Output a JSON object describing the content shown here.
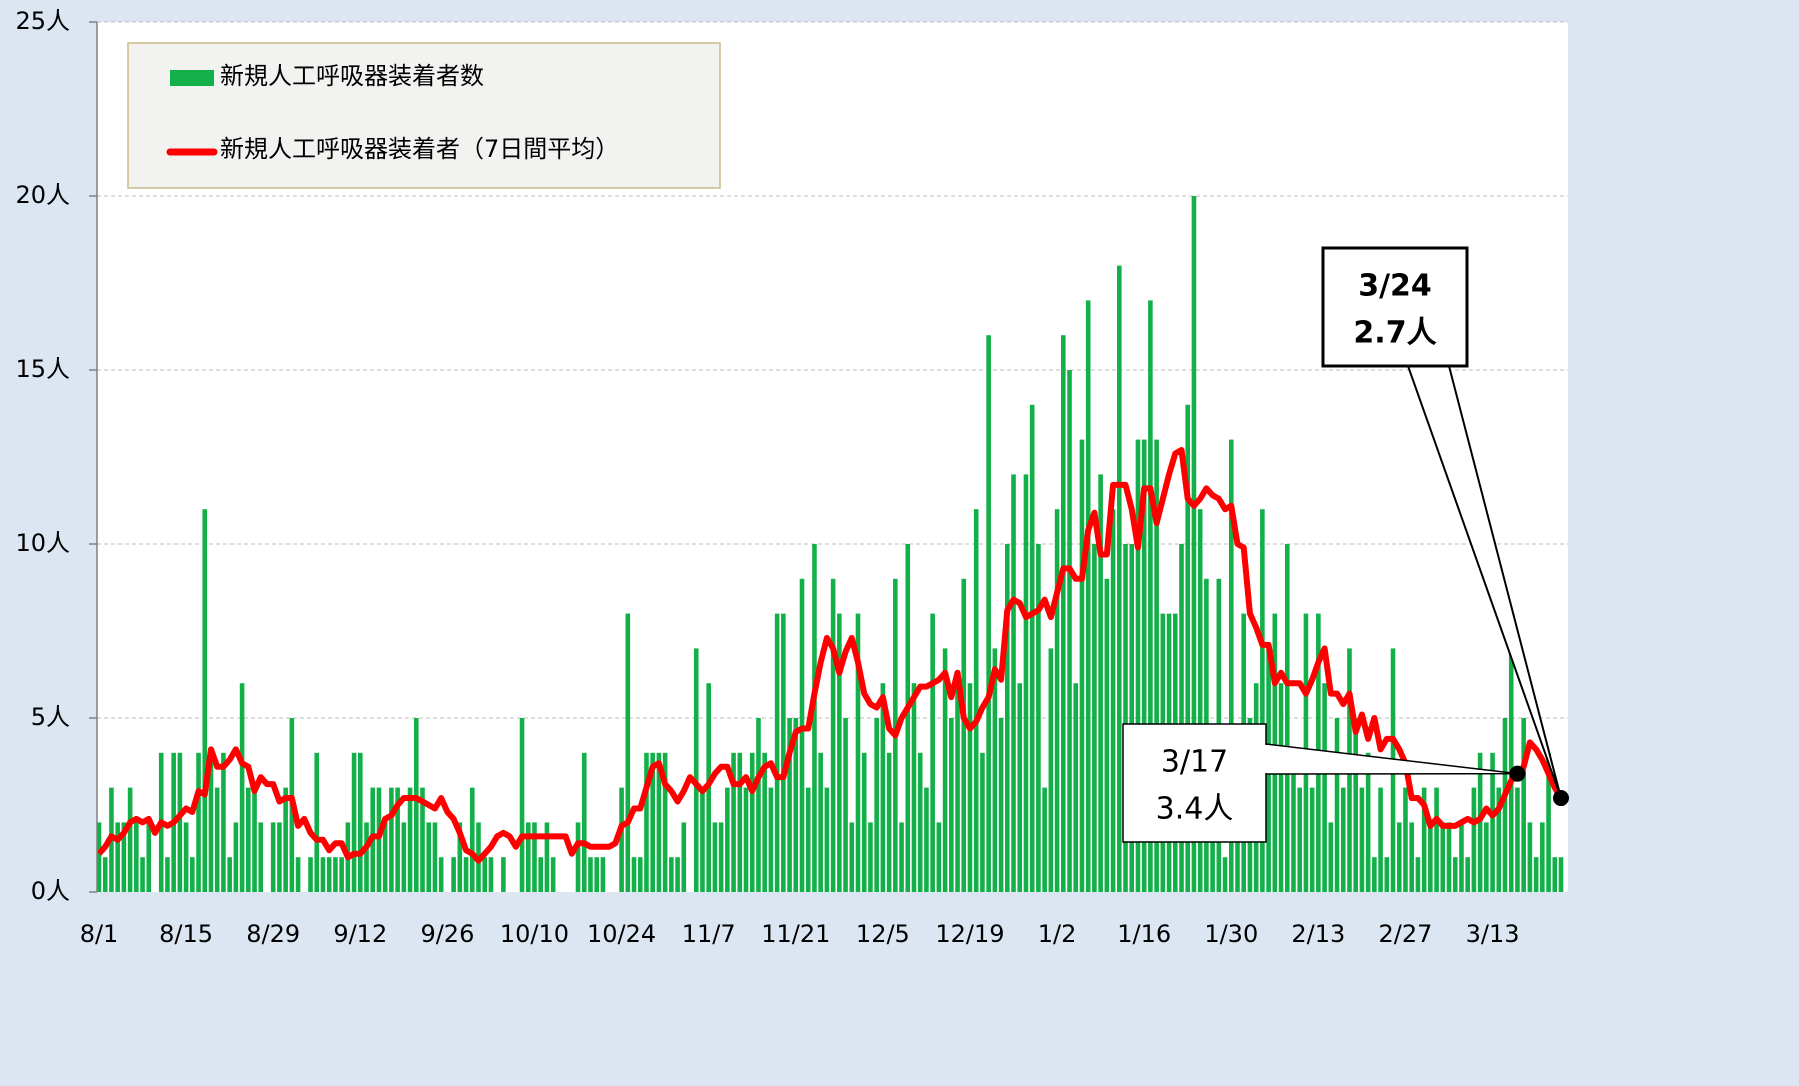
{
  "chart_data": {
    "type": "bar_line",
    "categories": [
      "8/1",
      null,
      null,
      null,
      null,
      null,
      null,
      null,
      null,
      null,
      null,
      null,
      null,
      null,
      "8/15",
      null,
      null,
      null,
      null,
      null,
      null,
      null,
      null,
      null,
      null,
      null,
      null,
      null,
      "8/29",
      null,
      null,
      null,
      null,
      null,
      null,
      null,
      null,
      null,
      null,
      null,
      null,
      null,
      "9/12",
      null,
      null,
      null,
      null,
      null,
      null,
      null,
      null,
      null,
      null,
      null,
      null,
      null,
      "9/26",
      null,
      null,
      null,
      null,
      null,
      null,
      null,
      null,
      null,
      null,
      null,
      null,
      null,
      "10/10",
      null,
      null,
      null,
      null,
      null,
      null,
      null,
      null,
      null,
      null,
      null,
      null,
      null,
      "10/24",
      null,
      null,
      null,
      null,
      null,
      null,
      null,
      null,
      null,
      null,
      null,
      null,
      null,
      "11/7",
      null,
      null,
      null,
      null,
      null,
      null,
      null,
      null,
      null,
      null,
      null,
      null,
      null,
      "11/21",
      null,
      null,
      null,
      null,
      null,
      null,
      null,
      null,
      null,
      null,
      null,
      null,
      null,
      "12/5",
      null,
      null,
      null,
      null,
      null,
      null,
      null,
      null,
      null,
      null,
      null,
      null,
      null,
      "12/19",
      null,
      null,
      null,
      null,
      null,
      null,
      null,
      null,
      null,
      null,
      null,
      null,
      null,
      "1/2",
      null,
      null,
      null,
      null,
      null,
      null,
      null,
      null,
      null,
      null,
      null,
      null,
      null,
      "1/16",
      null,
      null,
      null,
      null,
      null,
      null,
      null,
      null,
      null,
      null,
      null,
      null,
      null,
      "1/30",
      null,
      null,
      null,
      null,
      null,
      null,
      null,
      null,
      null,
      null,
      null,
      null,
      null,
      "2/13",
      null,
      null,
      null,
      null,
      null,
      null,
      null,
      null,
      null,
      null,
      null,
      null,
      null,
      "2/27",
      null,
      null,
      null,
      null,
      null,
      null,
      null,
      null,
      null,
      null,
      null,
      null,
      null,
      "3/13",
      null,
      null,
      null,
      null,
      null,
      null,
      null,
      null,
      null,
      null,
      null
    ],
    "series": [
      {
        "name": "新規人工呼吸器装着者数",
        "kind": "bar",
        "color": "#13b04a",
        "values": [
          2,
          1,
          3,
          2,
          2,
          3,
          2,
          1,
          2,
          0,
          4,
          1,
          4,
          4,
          2,
          1,
          4,
          11,
          4,
          3,
          4,
          1,
          2,
          6,
          3,
          3,
          2,
          0,
          2,
          2,
          3,
          5,
          1,
          0,
          1,
          4,
          1,
          1,
          1,
          1,
          2,
          4,
          4,
          2,
          3,
          3,
          2,
          3,
          3,
          2,
          3,
          5,
          3,
          2,
          2,
          1,
          0,
          1,
          2,
          1,
          3,
          2,
          1,
          1,
          0,
          1,
          0,
          0,
          5,
          2,
          2,
          1,
          2,
          1,
          0,
          0,
          0,
          2,
          4,
          1,
          1,
          1,
          0,
          0,
          3,
          8,
          1,
          1,
          4,
          4,
          4,
          4,
          1,
          1,
          2,
          0,
          7,
          3,
          6,
          2,
          2,
          3,
          4,
          4,
          3,
          4,
          5,
          4,
          3,
          8,
          8,
          5,
          5,
          9,
          3,
          10,
          4,
          3,
          9,
          8,
          5,
          2,
          8,
          4,
          2,
          5,
          6,
          4,
          9,
          2,
          10,
          6,
          4,
          3,
          8,
          2,
          7,
          5,
          6,
          9,
          6,
          11,
          4,
          16,
          7,
          5,
          10,
          12,
          6,
          12,
          14,
          10,
          3,
          7,
          11,
          16,
          15,
          6,
          13,
          17,
          10,
          12,
          9,
          11,
          18,
          10,
          10,
          13,
          13,
          17,
          13,
          8,
          8,
          8,
          10,
          14,
          20,
          11,
          9,
          3,
          9,
          1,
          13,
          2,
          8,
          5,
          6,
          11,
          7,
          8,
          6,
          10,
          4,
          3,
          8,
          3,
          8,
          6,
          2,
          5,
          3,
          7,
          5,
          3,
          4,
          1,
          3,
          1,
          7,
          2,
          3,
          2,
          1,
          3,
          2,
          3,
          2,
          2,
          1,
          2,
          1,
          3,
          4,
          2,
          4,
          3,
          5,
          7,
          3,
          5,
          2,
          1,
          2,
          4,
          1,
          1
        ]
      },
      {
        "name": "新規人工呼吸器装着者（7日間平均）",
        "kind": "line",
        "color": "#ff0000",
        "values": [
          1.1,
          1.3,
          1.6,
          1.5,
          1.7,
          2.0,
          2.1,
          2.0,
          2.1,
          1.7,
          2.0,
          1.9,
          2.0,
          2.2,
          2.4,
          2.3,
          2.9,
          2.8,
          4.1,
          3.6,
          3.6,
          3.8,
          4.1,
          3.7,
          3.6,
          2.9,
          3.3,
          3.1,
          3.1,
          2.6,
          2.7,
          2.7,
          1.9,
          2.1,
          1.7,
          1.5,
          1.5,
          1.2,
          1.4,
          1.4,
          1.0,
          1.1,
          1.1,
          1.3,
          1.6,
          1.6,
          2.1,
          2.2,
          2.5,
          2.7,
          2.7,
          2.7,
          2.6,
          2.5,
          2.4,
          2.7,
          2.3,
          2.1,
          1.7,
          1.2,
          1.1,
          0.9,
          1.1,
          1.3,
          1.6,
          1.7,
          1.6,
          1.3,
          1.6,
          1.6,
          1.6,
          1.6,
          1.6,
          1.6,
          1.6,
          1.6,
          1.1,
          1.4,
          1.4,
          1.3,
          1.3,
          1.3,
          1.3,
          1.4,
          1.9,
          2.0,
          2.4,
          2.4,
          3.0,
          3.6,
          3.7,
          3.1,
          2.9,
          2.6,
          2.9,
          3.3,
          3.1,
          2.9,
          3.1,
          3.4,
          3.6,
          3.6,
          3.1,
          3.1,
          3.3,
          2.9,
          3.3,
          3.6,
          3.7,
          3.3,
          3.3,
          4.0,
          4.6,
          4.7,
          4.7,
          5.7,
          6.6,
          7.3,
          7.0,
          6.3,
          6.9,
          7.3,
          6.6,
          5.7,
          5.4,
          5.3,
          5.6,
          4.7,
          4.5,
          5.0,
          5.3,
          5.6,
          5.9,
          5.9,
          6.0,
          6.1,
          6.3,
          5.6,
          6.3,
          5.0,
          4.7,
          4.9,
          5.3,
          5.6,
          6.4,
          6.1,
          8.1,
          8.4,
          8.3,
          7.9,
          8.0,
          8.1,
          8.4,
          7.9,
          8.6,
          9.3,
          9.3,
          9.0,
          9.0,
          10.4,
          10.9,
          9.7,
          9.7,
          11.7,
          11.7,
          11.7,
          11.0,
          9.9,
          11.6,
          11.6,
          10.6,
          11.3,
          12.0,
          12.6,
          12.7,
          11.3,
          11.1,
          11.3,
          11.6,
          11.4,
          11.3,
          11.0,
          11.1,
          10.0,
          9.9,
          8.0,
          7.6,
          7.1,
          7.1,
          6.0,
          6.3,
          6.0,
          6.0,
          6.0,
          5.7,
          6.1,
          6.6,
          7.0,
          5.7,
          5.7,
          5.4,
          5.7,
          4.6,
          5.1,
          4.4,
          5.0,
          4.1,
          4.4,
          4.4,
          4.1,
          3.7,
          2.7,
          2.7,
          2.5,
          1.9,
          2.1,
          1.9,
          1.9,
          1.9,
          2.0,
          2.1,
          2.0,
          2.1,
          2.4,
          2.2,
          2.4,
          2.8,
          3.2,
          3.4,
          3.6,
          4.3,
          4.1,
          3.8,
          3.4,
          3.0,
          2.7
        ]
      }
    ],
    "ylim": [
      0,
      25
    ],
    "yticks": [
      {
        "value": 0,
        "label": "0人"
      },
      {
        "value": 5,
        "label": "5人"
      },
      {
        "value": 10,
        "label": "10人"
      },
      {
        "value": 15,
        "label": "15人"
      },
      {
        "value": 20,
        "label": "20人"
      },
      {
        "value": 25,
        "label": "25人"
      }
    ],
    "grid": true,
    "annotations": [
      {
        "x": "3/24",
        "label": "2.7人"
      },
      {
        "x": "3/17",
        "label": "3.4人"
      }
    ]
  }
}
